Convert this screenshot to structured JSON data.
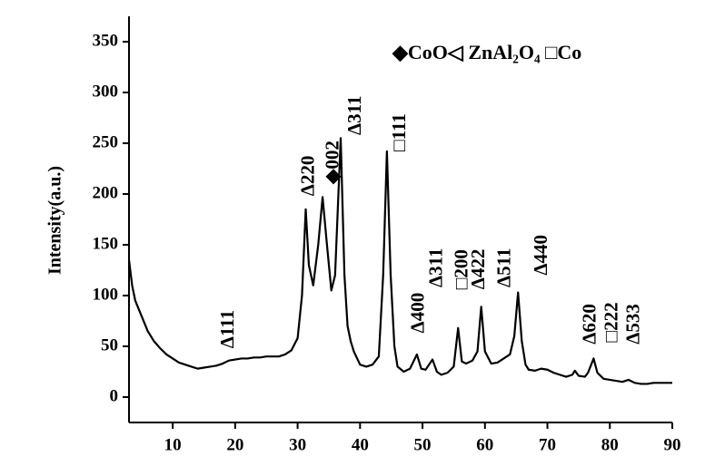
{
  "chart_data": {
    "type": "line",
    "y_label": "Intensity(a.u.)",
    "legend": "◆CoO◁ ZnAl₂O₄ □Co",
    "color": "#000000",
    "xlim": [
      3,
      90
    ],
    "ylim": [
      -25,
      375
    ],
    "xticks": [
      10,
      20,
      30,
      40,
      50,
      60,
      70,
      80,
      90
    ],
    "yticks": [
      0,
      50,
      100,
      150,
      200,
      250,
      300,
      350
    ],
    "x": [
      3,
      3.5,
      4,
      5,
      6,
      7,
      8,
      9,
      10,
      11,
      12,
      13,
      14,
      15,
      16,
      17,
      18,
      19,
      20,
      21,
      22,
      23,
      24,
      25,
      26,
      27,
      28,
      29,
      30,
      30.7,
      31.3,
      31.8,
      32.5,
      33.3,
      34,
      34.7,
      35.4,
      36,
      36.9,
      37.5,
      38,
      38.5,
      39,
      40,
      41,
      42,
      43,
      43.7,
      44.3,
      44.9,
      45.5,
      46,
      47,
      48,
      49.1,
      49.8,
      50.5,
      51.6,
      52.3,
      53,
      54,
      55,
      55.7,
      56.3,
      57,
      58,
      58.8,
      59.4,
      60,
      61,
      62,
      63,
      64,
      64.7,
      65.3,
      65.9,
      66.5,
      67,
      68,
      69,
      70,
      71,
      72,
      73,
      74,
      74.4,
      75,
      76,
      76.5,
      77.4,
      78,
      79,
      80,
      81,
      82,
      83,
      84,
      85,
      86,
      87,
      88,
      89,
      90
    ],
    "values": [
      135,
      110,
      95,
      80,
      65,
      55,
      48,
      42,
      38,
      34,
      32,
      30,
      28,
      29,
      30,
      31,
      33,
      36,
      37,
      38,
      38,
      39,
      39,
      40,
      40,
      40,
      42,
      46,
      58,
      100,
      185,
      130,
      110,
      150,
      197,
      150,
      105,
      120,
      255,
      120,
      70,
      55,
      45,
      32,
      30,
      32,
      40,
      120,
      242,
      120,
      50,
      30,
      25,
      28,
      42,
      28,
      27,
      37,
      25,
      22,
      24,
      30,
      68,
      35,
      33,
      36,
      45,
      89,
      45,
      33,
      34,
      38,
      42,
      60,
      103,
      55,
      32,
      27,
      26,
      28,
      27,
      24,
      22,
      20,
      22,
      26,
      21,
      20,
      24,
      38,
      24,
      18,
      17,
      16,
      15,
      17,
      14,
      13,
      13,
      14,
      14,
      14,
      14
    ],
    "annotations": [
      {
        "text": "Δ111",
        "x": 19,
        "y": 48
      },
      {
        "text": "Δ220",
        "x": 31.9,
        "y": 198
      },
      {
        "text": "◆002",
        "x": 35.8,
        "y": 210
      },
      {
        "text": "Δ311",
        "x": 39.4,
        "y": 258
      },
      {
        "text": "□111",
        "x": 46.5,
        "y": 242
      },
      {
        "text": "Δ400",
        "x": 49.5,
        "y": 63
      },
      {
        "text": "Δ311",
        "x": 52.4,
        "y": 108
      },
      {
        "text": "□200",
        "x": 56.5,
        "y": 106
      },
      {
        "text": "Δ422",
        "x": 59.2,
        "y": 106
      },
      {
        "text": "Δ511",
        "x": 63.3,
        "y": 108
      },
      {
        "text": "Δ440",
        "x": 69.2,
        "y": 120
      },
      {
        "text": "Δ620",
        "x": 77,
        "y": 52
      },
      {
        "text": "□222",
        "x": 80.5,
        "y": 54
      },
      {
        "text": "Δ533",
        "x": 84,
        "y": 52
      }
    ]
  }
}
